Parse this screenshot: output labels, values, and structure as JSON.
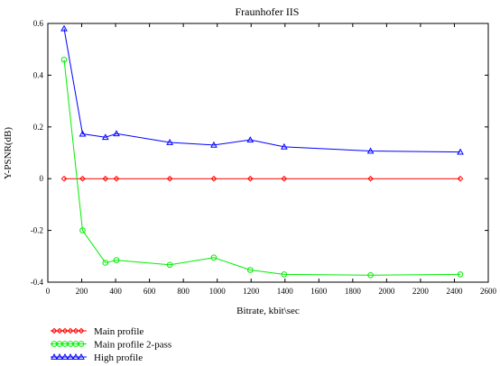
{
  "chart_data": {
    "type": "line",
    "title": "Fraunhofer IIS",
    "xlabel": "Bitrate, kbit\\sec",
    "ylabel": "Y-PSNR(dB)",
    "xlim": [
      0,
      2600
    ],
    "ylim": [
      -0.4,
      0.6
    ],
    "xticks": [
      0,
      200,
      400,
      600,
      800,
      1000,
      1200,
      1400,
      1600,
      1800,
      2000,
      2200,
      2400,
      2600
    ],
    "yticks": [
      -0.4,
      -0.2,
      0,
      0.2,
      0.4,
      0.6
    ],
    "xtick_labels": [
      "0",
      "200",
      "400",
      "600",
      "800",
      "1000",
      "1200",
      "1400",
      "1600",
      "1800",
      "2000",
      "2200",
      "2400",
      "2600"
    ],
    "ytick_labels": [
      "-0.4",
      "-0.2",
      "0",
      "0.2",
      "0.4",
      "0.6"
    ],
    "grid": false,
    "legend_position": "below-left",
    "series": [
      {
        "name": "Main profile",
        "color": "#ff0000",
        "marker": "diamond",
        "x": [
          96,
          205,
          340,
          405,
          720,
          980,
          1195,
          1395,
          1905,
          2435
        ],
        "y": [
          0,
          0,
          0,
          0,
          0,
          0,
          0,
          0,
          0,
          0
        ]
      },
      {
        "name": "Main profile 2-pass",
        "color": "#00ee00",
        "marker": "circle",
        "x": [
          96,
          205,
          340,
          405,
          720,
          980,
          1195,
          1395,
          1905,
          2435
        ],
        "y": [
          0.46,
          -0.2,
          -0.325,
          -0.315,
          -0.333,
          -0.305,
          -0.353,
          -0.37,
          -0.373,
          -0.37
        ]
      },
      {
        "name": "High profile",
        "color": "#0000ff",
        "marker": "triangle",
        "x": [
          96,
          205,
          340,
          405,
          720,
          980,
          1195,
          1395,
          1905,
          2435
        ],
        "y": [
          0.58,
          0.173,
          0.16,
          0.174,
          0.14,
          0.13,
          0.15,
          0.123,
          0.107,
          0.103
        ]
      }
    ]
  }
}
